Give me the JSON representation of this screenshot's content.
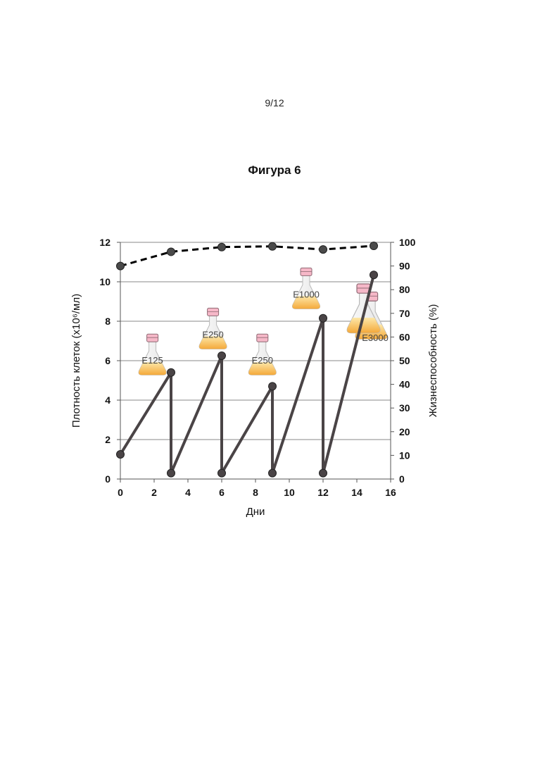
{
  "page": {
    "number": "9/12"
  },
  "figure": {
    "title": "Фигура 6"
  },
  "chart_data": {
    "type": "line",
    "xlabel": "Дни",
    "ylabel": "Плотность клеток (x10⁶/мл)",
    "ylabel_right": "Жизнеспособность (%)",
    "xlim": [
      0,
      16
    ],
    "ylim": [
      0,
      12
    ],
    "ylim_right": [
      0,
      100
    ],
    "x_ticks": [
      0,
      2,
      4,
      6,
      8,
      10,
      12,
      14,
      16
    ],
    "y_ticks": [
      0,
      2,
      4,
      6,
      8,
      10,
      12
    ],
    "y_ticks_right": [
      0,
      10,
      20,
      30,
      40,
      50,
      60,
      70,
      80,
      90,
      100
    ],
    "grid": true,
    "series": [
      {
        "axis": "left",
        "style": "solid",
        "color": "#4a4446",
        "x": [
          0,
          3,
          3,
          6,
          6,
          9,
          9,
          12,
          12,
          15
        ],
        "y": [
          1.25,
          5.4,
          0.3,
          6.25,
          0.3,
          4.7,
          0.3,
          8.15,
          0.3,
          10.35
        ]
      },
      {
        "axis": "right",
        "style": "dashed",
        "color": "#000000",
        "x": [
          0,
          3,
          6,
          9,
          12,
          15
        ],
        "y": [
          90,
          96,
          98,
          98.3,
          97,
          98.5
        ]
      }
    ],
    "annotations": [
      {
        "text": "E125",
        "x": 1.9,
        "y": 5.85
      },
      {
        "text": "E250",
        "x": 5.4,
        "y": 7.2
      },
      {
        "text": "E250",
        "x": 8.45,
        "y": 5.85
      },
      {
        "text": "E1000",
        "x": 11.0,
        "y": 9.2
      },
      {
        "text": "E3000",
        "x": 15.0,
        "y": 7.15
      }
    ]
  }
}
